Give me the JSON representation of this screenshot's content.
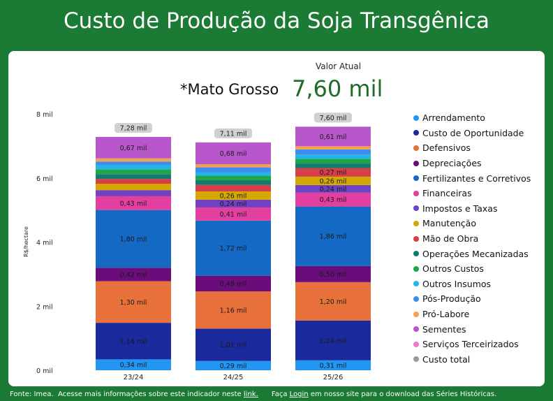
{
  "header": {
    "title": "Custo de Produção da Soja Transgênica",
    "current_value_label": "Valor Atual",
    "region": "*Mato Grosso",
    "current_value": "7,60 mil"
  },
  "footer": {
    "source": "Fonte: Imea.",
    "more_info": "Acesse mais informações sobre este indicador neste",
    "link_text": "link.",
    "login_prefix": "Faça",
    "login_text": "Login",
    "login_suffix": "em nosso site para o download das Séries Históricas."
  },
  "colors": {
    "Arrendamento": "#2196f3",
    "Custo de Oportunidade": "#1a2a9c",
    "Defensivos": "#e8703a",
    "Depreciações": "#6a0d7a",
    "Fertilizantes e Corretivos": "#1469c4",
    "Financeiras": "#e23fa0",
    "Impostos e Taxas": "#6e42c1",
    "Manutenção": "#d4a800",
    "Mão de Obra": "#d63e4a",
    "Operações Mecanizadas": "#137a6e",
    "Outros Custos": "#1ea64a",
    "Outros Insumos": "#22b8e6",
    "Pós-Produção": "#3a8ff0",
    "Pró-Labore": "#f5a050",
    "Sementes": "#b857cc",
    "Serviços Terceirizados": "#ee7ad0",
    "Custo total": "#999999"
  },
  "chart_data": {
    "type": "bar",
    "stacked": true,
    "ylabel": "R$/hectare",
    "ylim": [
      0,
      8000
    ],
    "yticks": [
      0,
      2000,
      4000,
      6000,
      8000
    ],
    "ytick_labels": [
      "0 mil",
      "2 mil",
      "4 mil",
      "6 mil",
      "8 mil"
    ],
    "categories": [
      "23/24",
      "24/25",
      "25/26"
    ],
    "totals": [
      7280,
      7110,
      7600
    ],
    "total_labels": [
      "7,28 mil",
      "7,11 mil",
      "7,60 mil"
    ],
    "legend": [
      "Arrendamento",
      "Custo de Oportunidade",
      "Defensivos",
      "Depreciações",
      "Fertilizantes e Corretivos",
      "Financeiras",
      "Impostos e Taxas",
      "Manutenção",
      "Mão de Obra",
      "Operações Mecanizadas",
      "Outros Custos",
      "Outros Insumos",
      "Pós-Produção",
      "Pró-Labore",
      "Sementes",
      "Serviços Terceirizados",
      "Custo total"
    ],
    "legend_position": "right",
    "series": [
      {
        "name": "Arrendamento",
        "values": [
          340,
          290,
          310
        ],
        "labels": [
          "0,34 mil",
          "0,29 mil",
          "0,31 mil"
        ]
      },
      {
        "name": "Custo de Oportunidade",
        "values": [
          1140,
          1010,
          1240
        ],
        "labels": [
          "1,14 mil",
          "1,01 mil",
          "1,24 mil"
        ]
      },
      {
        "name": "Defensivos",
        "values": [
          1300,
          1160,
          1200
        ],
        "labels": [
          "1,30 mil",
          "1,16 mil",
          "1,20 mil"
        ]
      },
      {
        "name": "Depreciações",
        "values": [
          420,
          490,
          500
        ],
        "labels": [
          "0,42 mil",
          "0,49 mil",
          "0,50 mil"
        ]
      },
      {
        "name": "Fertilizantes e Corretivos",
        "values": [
          1800,
          1720,
          1860
        ],
        "labels": [
          "1,80 mil",
          "1,72 mil",
          "1,86 mil"
        ]
      },
      {
        "name": "Financeiras",
        "values": [
          430,
          410,
          430
        ],
        "labels": [
          "0,43 mil",
          "0,41 mil",
          "0,43 mil"
        ]
      },
      {
        "name": "Impostos e Taxas",
        "values": [
          190,
          240,
          240
        ],
        "labels": [
          "",
          "0,24 mil",
          "0,24 mil"
        ]
      },
      {
        "name": "Manutenção",
        "values": [
          200,
          260,
          260
        ],
        "labels": [
          "",
          "0,26 mil",
          "0,26 mil"
        ]
      },
      {
        "name": "Mão de Obra",
        "values": [
          150,
          200,
          270
        ],
        "labels": [
          "",
          "",
          "0,27 mil"
        ]
      },
      {
        "name": "Operações Mecanizadas",
        "values": [
          150,
          150,
          140
        ],
        "labels": [
          "",
          "",
          ""
        ]
      },
      {
        "name": "Outros Custos",
        "values": [
          150,
          140,
          150
        ],
        "labels": [
          "",
          "",
          ""
        ]
      },
      {
        "name": "Outros Insumos",
        "values": [
          120,
          100,
          130
        ],
        "labels": [
          "",
          "",
          ""
        ]
      },
      {
        "name": "Pós-Produção",
        "values": [
          120,
          160,
          160
        ],
        "labels": [
          "",
          "",
          ""
        ]
      },
      {
        "name": "Pró-Labore",
        "values": [
          100,
          100,
          100
        ],
        "labels": [
          "",
          "",
          ""
        ]
      },
      {
        "name": "Sementes",
        "values": [
          670,
          680,
          610
        ],
        "labels": [
          "0,67 mil",
          "0,68 mil",
          "0,61 mil"
        ]
      },
      {
        "name": "Serviços Terceirizados",
        "values": [
          0,
          0,
          0
        ],
        "labels": [
          "",
          "",
          ""
        ]
      }
    ]
  }
}
